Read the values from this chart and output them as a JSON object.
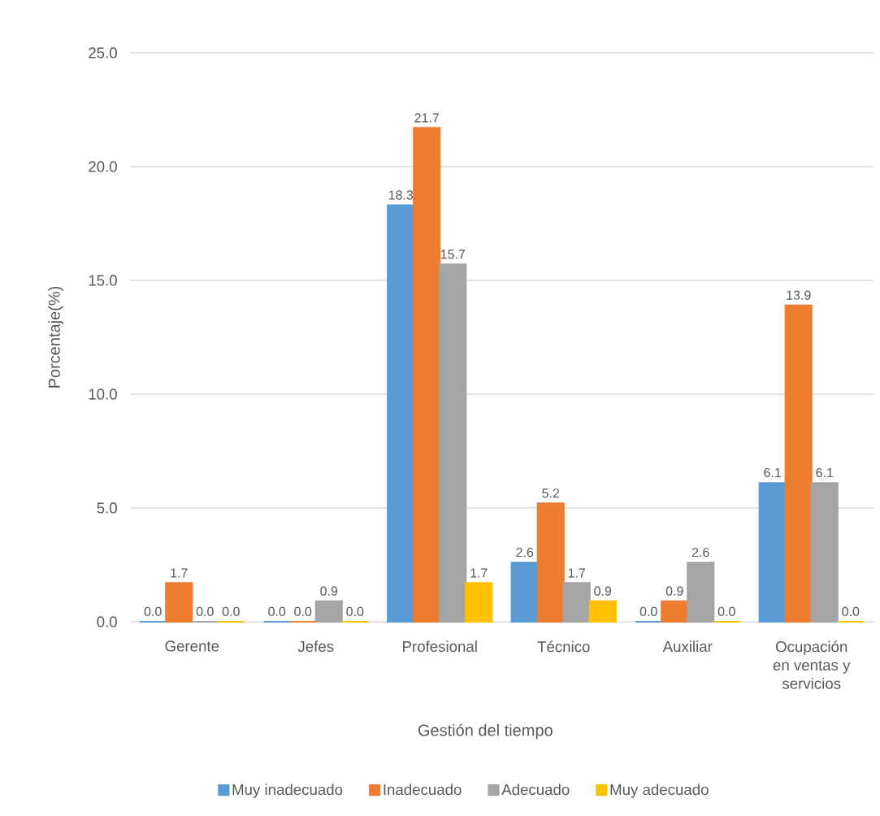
{
  "chart_data": {
    "type": "bar",
    "xlabel": "Gestión del tiempo",
    "ylabel": "Porcentaje(%)",
    "categories": [
      "Gerente",
      "Jefes",
      "Profesional",
      "Técnico",
      "Auxiliar",
      "Ocupación en ventas y servicios"
    ],
    "series": [
      {
        "name": "Muy inadecuado",
        "color": "#5b9bd5",
        "values": [
          0.0,
          0.0,
          18.3,
          2.6,
          0.0,
          6.1
        ],
        "value_labels": [
          "0.0",
          "0.0",
          "18.3",
          "2.6",
          "0.0",
          "6.1"
        ]
      },
      {
        "name": "Inadecuado",
        "color": "#ed7d31",
        "values": [
          1.7,
          0.0,
          21.7,
          5.2,
          0.9,
          13.9
        ],
        "value_labels": [
          "1.7",
          "0.0",
          "21.7",
          "5.2",
          "0.9",
          "13.9"
        ]
      },
      {
        "name": "Adecuado",
        "color": "#a5a5a5",
        "values": [
          0.0,
          0.9,
          15.7,
          1.7,
          2.6,
          6.1
        ],
        "value_labels": [
          "0.0",
          "0.9",
          "15.7",
          "1.7",
          "2.6",
          "6.1"
        ]
      },
      {
        "name": "Muy adecuado",
        "color": "#ffc000",
        "values": [
          0.0,
          0.0,
          1.7,
          0.9,
          0.0,
          0.0
        ],
        "value_labels": [
          "0.0",
          "0.0",
          "1.7",
          "0.9",
          "0.0",
          "0.0"
        ]
      }
    ],
    "ylim": [
      0,
      25
    ],
    "yticks": [
      {
        "value": 0,
        "label": "0.0"
      },
      {
        "value": 5,
        "label": "5.0"
      },
      {
        "value": 10,
        "label": "10.0"
      },
      {
        "value": 15,
        "label": "15.0"
      },
      {
        "value": 20,
        "label": "20.0"
      },
      {
        "value": 25,
        "label": "25.0"
      }
    ],
    "grid": "y",
    "legend": "bottom"
  }
}
